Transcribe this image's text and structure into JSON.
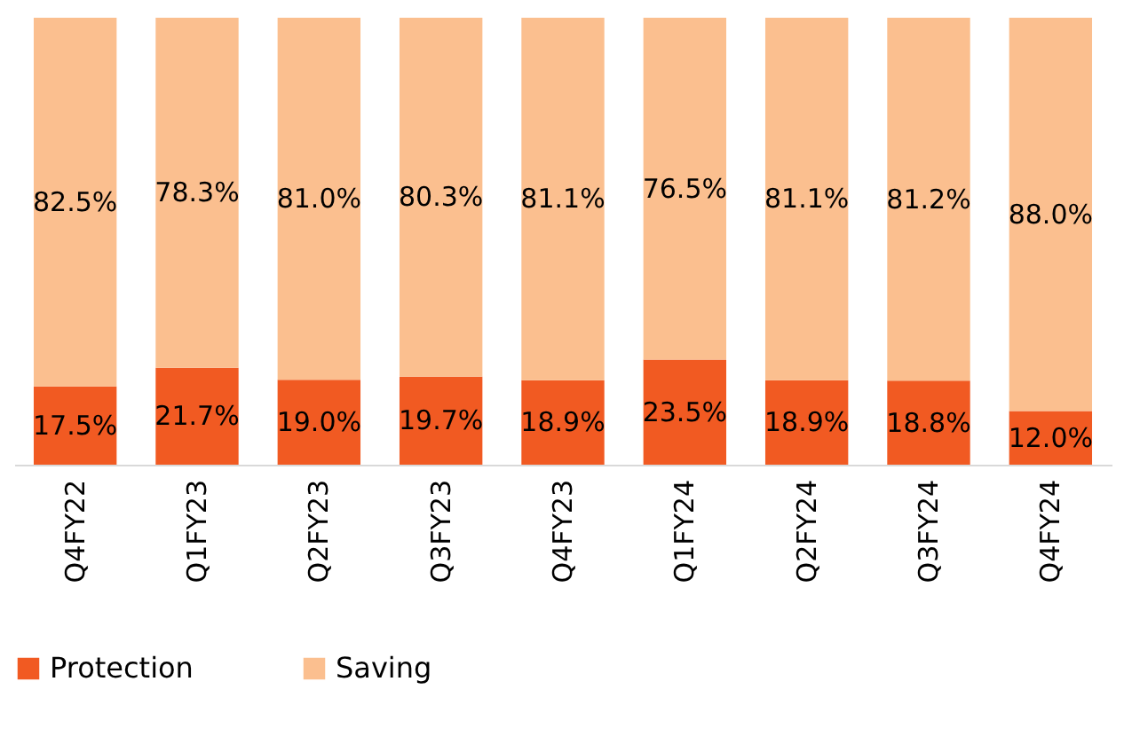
{
  "chart_data": {
    "type": "bar",
    "stacked": true,
    "categories": [
      "Q4FY22",
      "Q1FY23",
      "Q2FY23",
      "Q3FY23",
      "Q4FY23",
      "Q1FY24",
      "Q2FY24",
      "Q3FY24",
      "Q4FY24"
    ],
    "series": [
      {
        "name": "Protection",
        "color": "#f15a22",
        "values": [
          17.5,
          21.7,
          19.0,
          19.7,
          18.9,
          23.5,
          18.9,
          18.8,
          12.0
        ],
        "value_labels": [
          "17.5%",
          "21.7%",
          "19.0%",
          "19.7%",
          "18.9%",
          "23.5%",
          "18.9%",
          "18.8%",
          "12.0%"
        ]
      },
      {
        "name": "Saving",
        "color": "#fbbf8f",
        "values": [
          82.5,
          78.3,
          81.0,
          80.3,
          81.1,
          76.5,
          81.1,
          81.2,
          88.0
        ],
        "value_labels": [
          "82.5%",
          "78.3%",
          "81.0%",
          "80.3%",
          "81.1%",
          "76.5%",
          "81.1%",
          "81.2%",
          "88.0%"
        ]
      }
    ],
    "ylim": [
      0,
      100
    ],
    "tick_labels": "x",
    "grid": false,
    "legend": "bottom"
  }
}
